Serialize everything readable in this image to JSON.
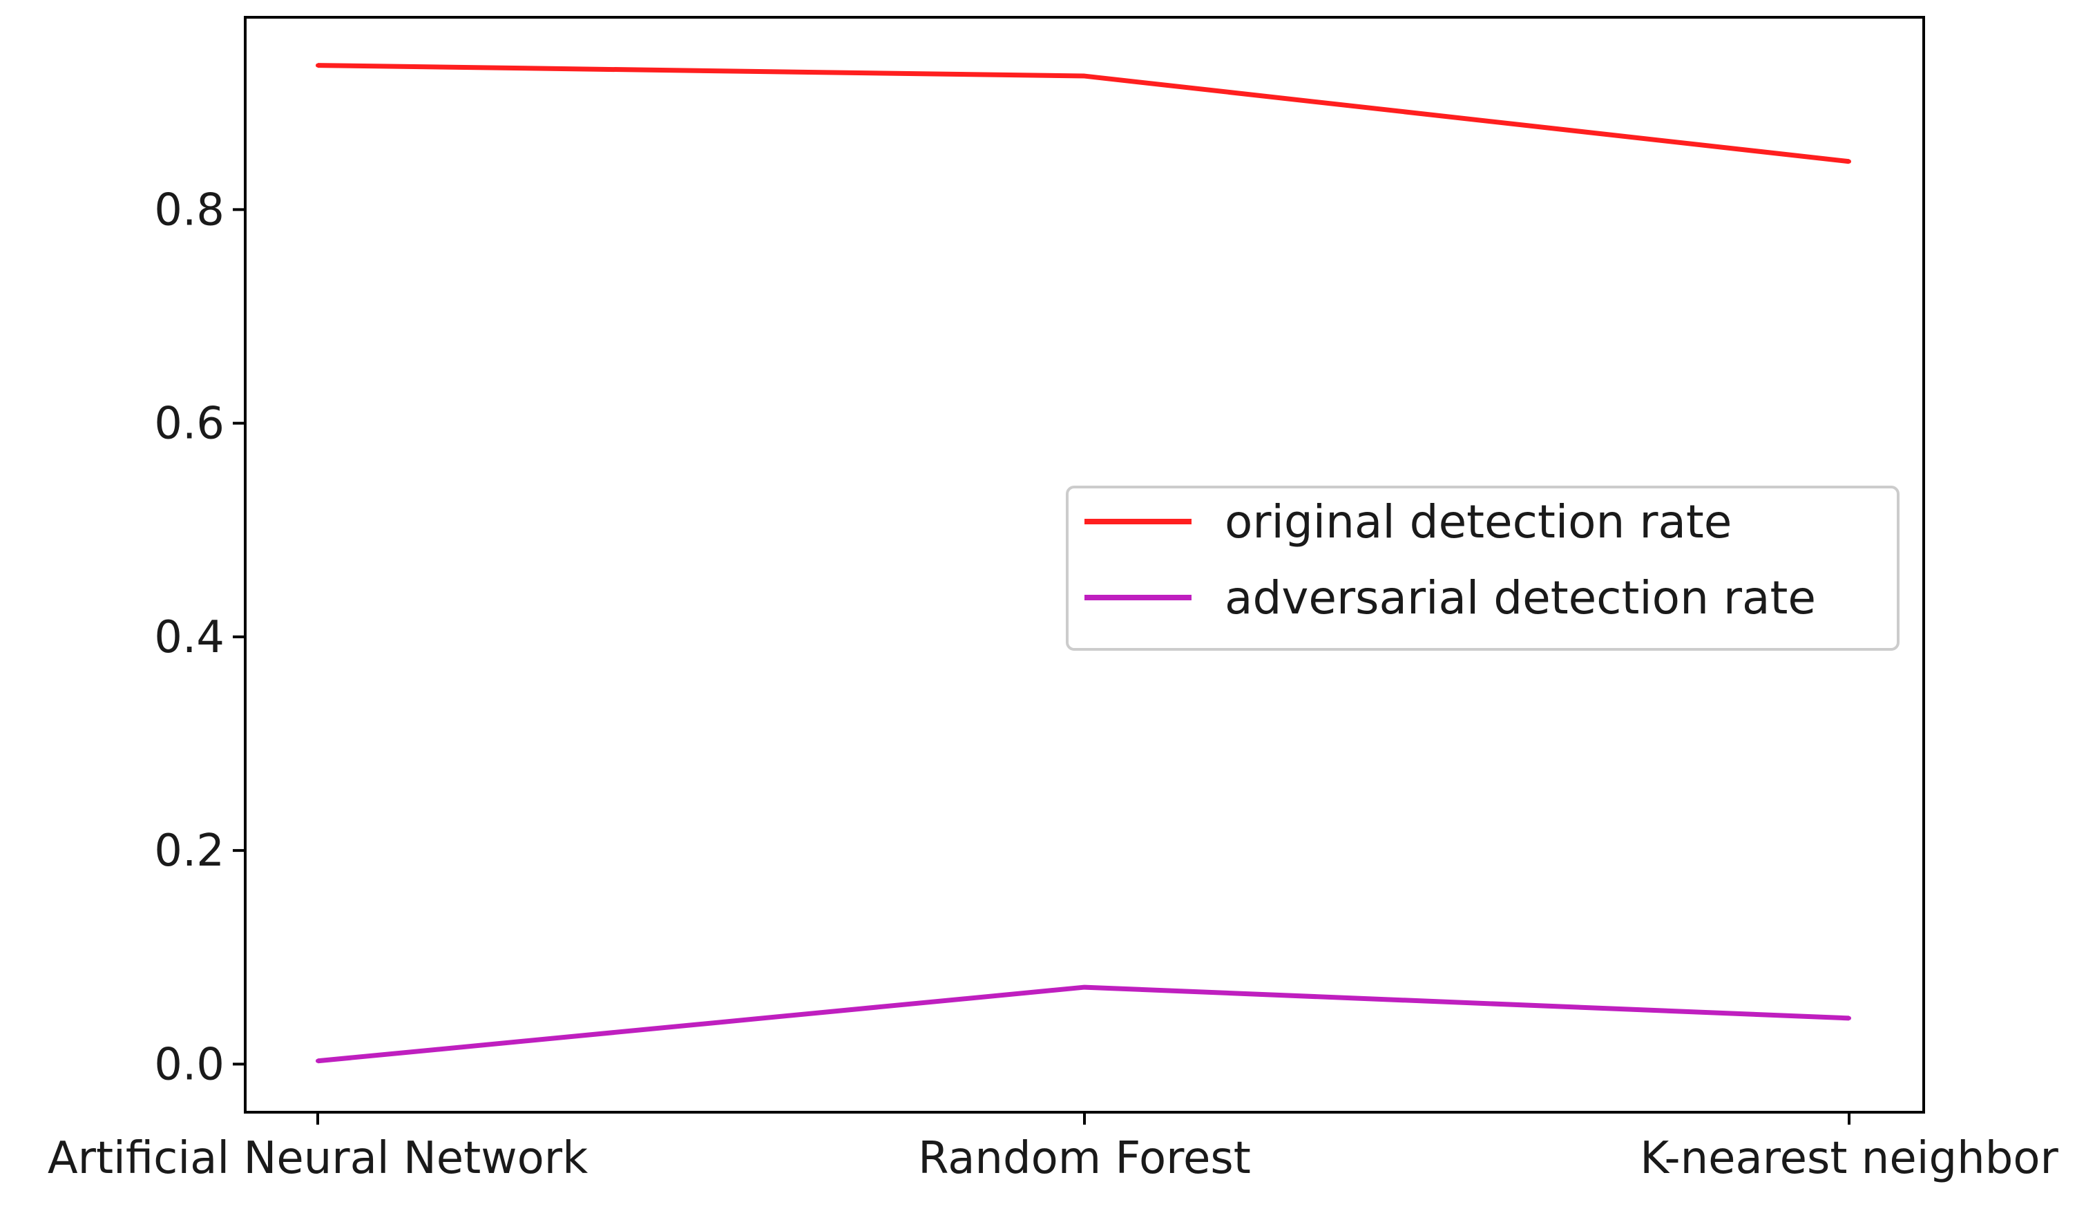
{
  "chart_data": {
    "type": "line",
    "categories": [
      "Artificial Neural Network",
      "Random Forest",
      "K-nearest neighbor"
    ],
    "series": [
      {
        "name": "original detection rate",
        "values": [
          0.935,
          0.925,
          0.845
        ],
        "color": "#ff1f1f"
      },
      {
        "name": "adversarial detection rate",
        "values": [
          0.003,
          0.072,
          0.043
        ],
        "color": "#bf1fbf"
      }
    ],
    "yticks": [
      0.0,
      0.2,
      0.4,
      0.6,
      0.8
    ],
    "ytick_labels": [
      "0.0",
      "0.2",
      "0.4",
      "0.6",
      "0.8"
    ],
    "ylim": [
      -0.045,
      0.98
    ],
    "title": "",
    "xlabel": "",
    "ylabel": "",
    "grid": false,
    "legend_placement": "center-right"
  }
}
